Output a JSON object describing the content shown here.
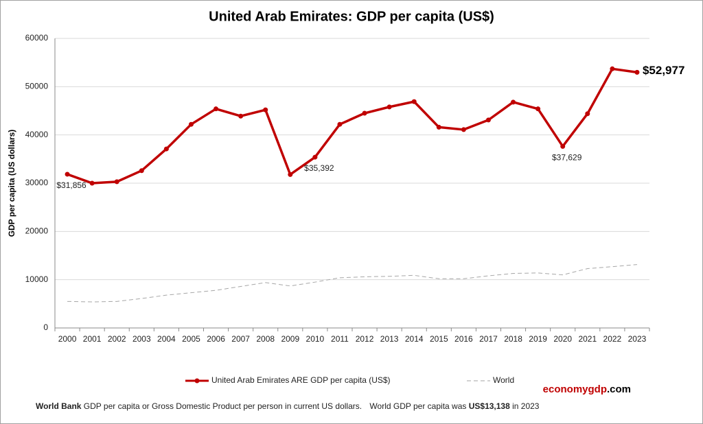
{
  "chart_data": {
    "type": "line",
    "title": "United Arab Emirates: GDP per capita (US$)",
    "y_label": "GDP per capita (US dollars)",
    "categories": [
      "2000",
      "2001",
      "2002",
      "2003",
      "2004",
      "2005",
      "2006",
      "2007",
      "2008",
      "2009",
      "2010",
      "2011",
      "2012",
      "2013",
      "2014",
      "2015",
      "2016",
      "2017",
      "2018",
      "2019",
      "2020",
      "2021",
      "2022",
      "2023"
    ],
    "series": [
      {
        "name": "United Arab Emirates ARE GDP per capita (US$)",
        "color": "#c00000",
        "values": [
          31856,
          30000,
          30300,
          32600,
          37100,
          42200,
          45400,
          43900,
          45200,
          31800,
          35392,
          42200,
          44500,
          45800,
          46900,
          41600,
          41100,
          43100,
          46800,
          45400,
          37629,
          44400,
          53700,
          52977
        ],
        "value_labels": [
          "$31,856",
          null,
          null,
          null,
          null,
          null,
          null,
          null,
          null,
          null,
          "$35,392",
          null,
          null,
          null,
          null,
          null,
          null,
          null,
          null,
          null,
          "$37,629",
          null,
          null,
          "$52,977"
        ]
      },
      {
        "name": "World",
        "color": "#a6a6a6",
        "dashed": true,
        "values": [
          5500,
          5400,
          5500,
          6100,
          6800,
          7300,
          7800,
          8600,
          9400,
          8700,
          9500,
          10400,
          10600,
          10700,
          10900,
          10200,
          10200,
          10800,
          11300,
          11400,
          11000,
          12300,
          12700,
          13138
        ]
      }
    ],
    "ylim": [
      0,
      60000
    ],
    "yticks": [
      0,
      10000,
      20000,
      30000,
      40000,
      50000,
      60000
    ],
    "grid": true
  },
  "footer": {
    "source": "World Bank",
    "text": "GDP per capita or Gross Domestic Product per person in current US dollars.",
    "world_text": "World GDP per capita was",
    "world_value": "US$13,138",
    "year_text": "in 2023"
  },
  "brand": {
    "name": "economygdp",
    "tld": ".com"
  }
}
